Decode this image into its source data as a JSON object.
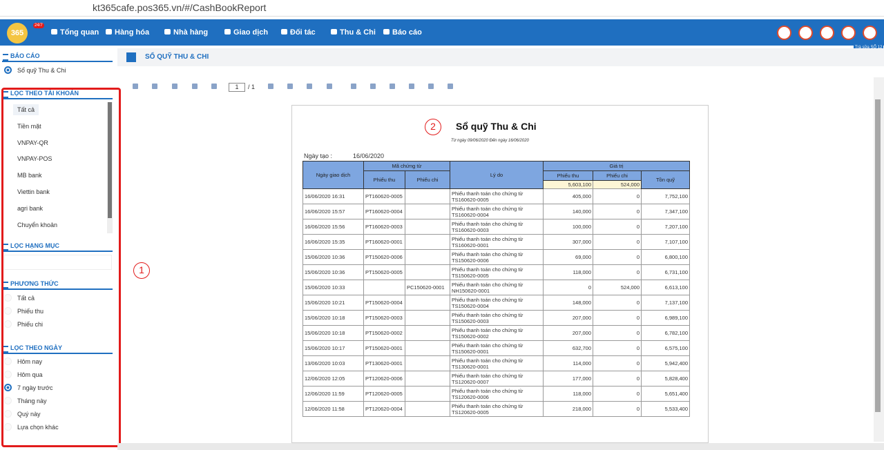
{
  "browser": {
    "url": "kt365cafe.pos365.vn/#/CashBookReport"
  },
  "nav": {
    "logo": "365",
    "badge": "24/7",
    "menu": [
      "Tổng quan",
      "Hàng hóa",
      "Nhà hàng",
      "Giao dịch",
      "Đối tác",
      "Thu & Chi",
      "Báo cáo"
    ],
    "store": "Trà sữa SỐ 12"
  },
  "sidebar": {
    "report_heading": "BÁO CÁO",
    "report_item": "Sổ quỹ Thu & Chi",
    "account_heading": "LỌC THEO TÀI KHOẢN",
    "accounts": [
      "Tất cả",
      "Tiền mặt",
      "VNPAY-QR",
      "VNPAY-POS",
      "MB bank",
      "Viettin bank",
      "agri bank",
      "Chuyển khoản"
    ],
    "category_heading": "LỌC HẠNG MỤC",
    "method_heading": "PHƯƠNG THỨC",
    "methods": [
      "Tất cả",
      "Phiếu thu",
      "Phiếu chi"
    ],
    "date_heading": "LỌC THEO NGÀY",
    "dates": [
      "Hôm nay",
      "Hôm qua",
      "7 ngày trước",
      "Tháng này",
      "Quý này",
      "Lựa chọn khác"
    ],
    "date_selected": 2
  },
  "annotations": [
    "1",
    "2"
  ],
  "main": {
    "heading": "SỔ QUỸ THU & CHI",
    "page": "1",
    "page_total": "/ 1"
  },
  "report": {
    "title": "Sổ quỹ Thu & Chi",
    "subtitle": "Từ ngày 09/06/2020 Đến ngày 16/06/2020",
    "created_label": "Ngày tạo :",
    "created": "16/06/2020",
    "headers": {
      "date": "Ngày giao dịch",
      "code": "Mã chứng từ",
      "code_in": "Phiếu thu",
      "code_out": "Phiếu chi",
      "reason": "Lý do",
      "value": "Giá trị",
      "value_in": "Phiếu thu",
      "value_out": "Phiếu chi",
      "balance": "Tồn quỹ"
    },
    "totals": [
      "5,603,100",
      "524,000"
    ],
    "rows": [
      [
        "16/06/2020 16:31",
        "PT160620-0005",
        "",
        "Phiếu thanh toán cho chứng từ TS160620-0005",
        "405,000",
        "0",
        "7,752,100"
      ],
      [
        "16/06/2020 15:57",
        "PT160620-0004",
        "",
        "Phiếu thanh toán cho chứng từ TS160620-0004",
        "140,000",
        "0",
        "7,347,100"
      ],
      [
        "16/06/2020 15:56",
        "PT160620-0003",
        "",
        "Phiếu thanh toán cho chứng từ TS160620-0003",
        "100,000",
        "0",
        "7,207,100"
      ],
      [
        "16/06/2020 15:35",
        "PT160620-0001",
        "",
        "Phiếu thanh toán cho chứng từ TS160620-0001",
        "307,000",
        "0",
        "7,107,100"
      ],
      [
        "15/06/2020 10:36",
        "PT150620-0006",
        "",
        "Phiếu thanh toán cho chứng từ TS150620-0006",
        "69,000",
        "0",
        "6,800,100"
      ],
      [
        "15/06/2020 10:36",
        "PT150620-0005",
        "",
        "Phiếu thanh toán cho chứng từ TS150620-0005",
        "118,000",
        "0",
        "6,731,100"
      ],
      [
        "15/06/2020 10:33",
        "",
        "PC150620-0001",
        "Phiếu thanh toán cho chứng từ NH150620-0001",
        "0",
        "524,000",
        "6,613,100"
      ],
      [
        "15/06/2020 10:21",
        "PT150620-0004",
        "",
        "Phiếu thanh toán cho chứng từ TS150620-0004",
        "148,000",
        "0",
        "7,137,100"
      ],
      [
        "15/06/2020 10:18",
        "PT150620-0003",
        "",
        "Phiếu thanh toán cho chứng từ TS150620-0003",
        "207,000",
        "0",
        "6,989,100"
      ],
      [
        "15/06/2020 10:18",
        "PT150620-0002",
        "",
        "Phiếu thanh toán cho chứng từ TS150620-0002",
        "207,000",
        "0",
        "6,782,100"
      ],
      [
        "15/06/2020 10:17",
        "PT150620-0001",
        "",
        "Phiếu thanh toán cho chứng từ TS150620-0001",
        "632,700",
        "0",
        "6,575,100"
      ],
      [
        "13/06/2020 10:03",
        "PT130620-0001",
        "",
        "Phiếu thanh toán cho chứng từ TS130620-0001",
        "114,000",
        "0",
        "5,942,400"
      ],
      [
        "12/06/2020 12:05",
        "PT120620-0006",
        "",
        "Phiếu thanh toán cho chứng từ TS120620-0007",
        "177,000",
        "0",
        "5,828,400"
      ],
      [
        "12/06/2020 11:59",
        "PT120620-0005",
        "",
        "Phiếu thanh toán cho chứng từ TS120620-0006",
        "118,000",
        "0",
        "5,651,400"
      ],
      [
        "12/06/2020 11:58",
        "PT120620-0004",
        "",
        "Phiếu thanh toán cho chứng từ TS120620-0005",
        "218,000",
        "0",
        "5,533,400"
      ]
    ]
  }
}
